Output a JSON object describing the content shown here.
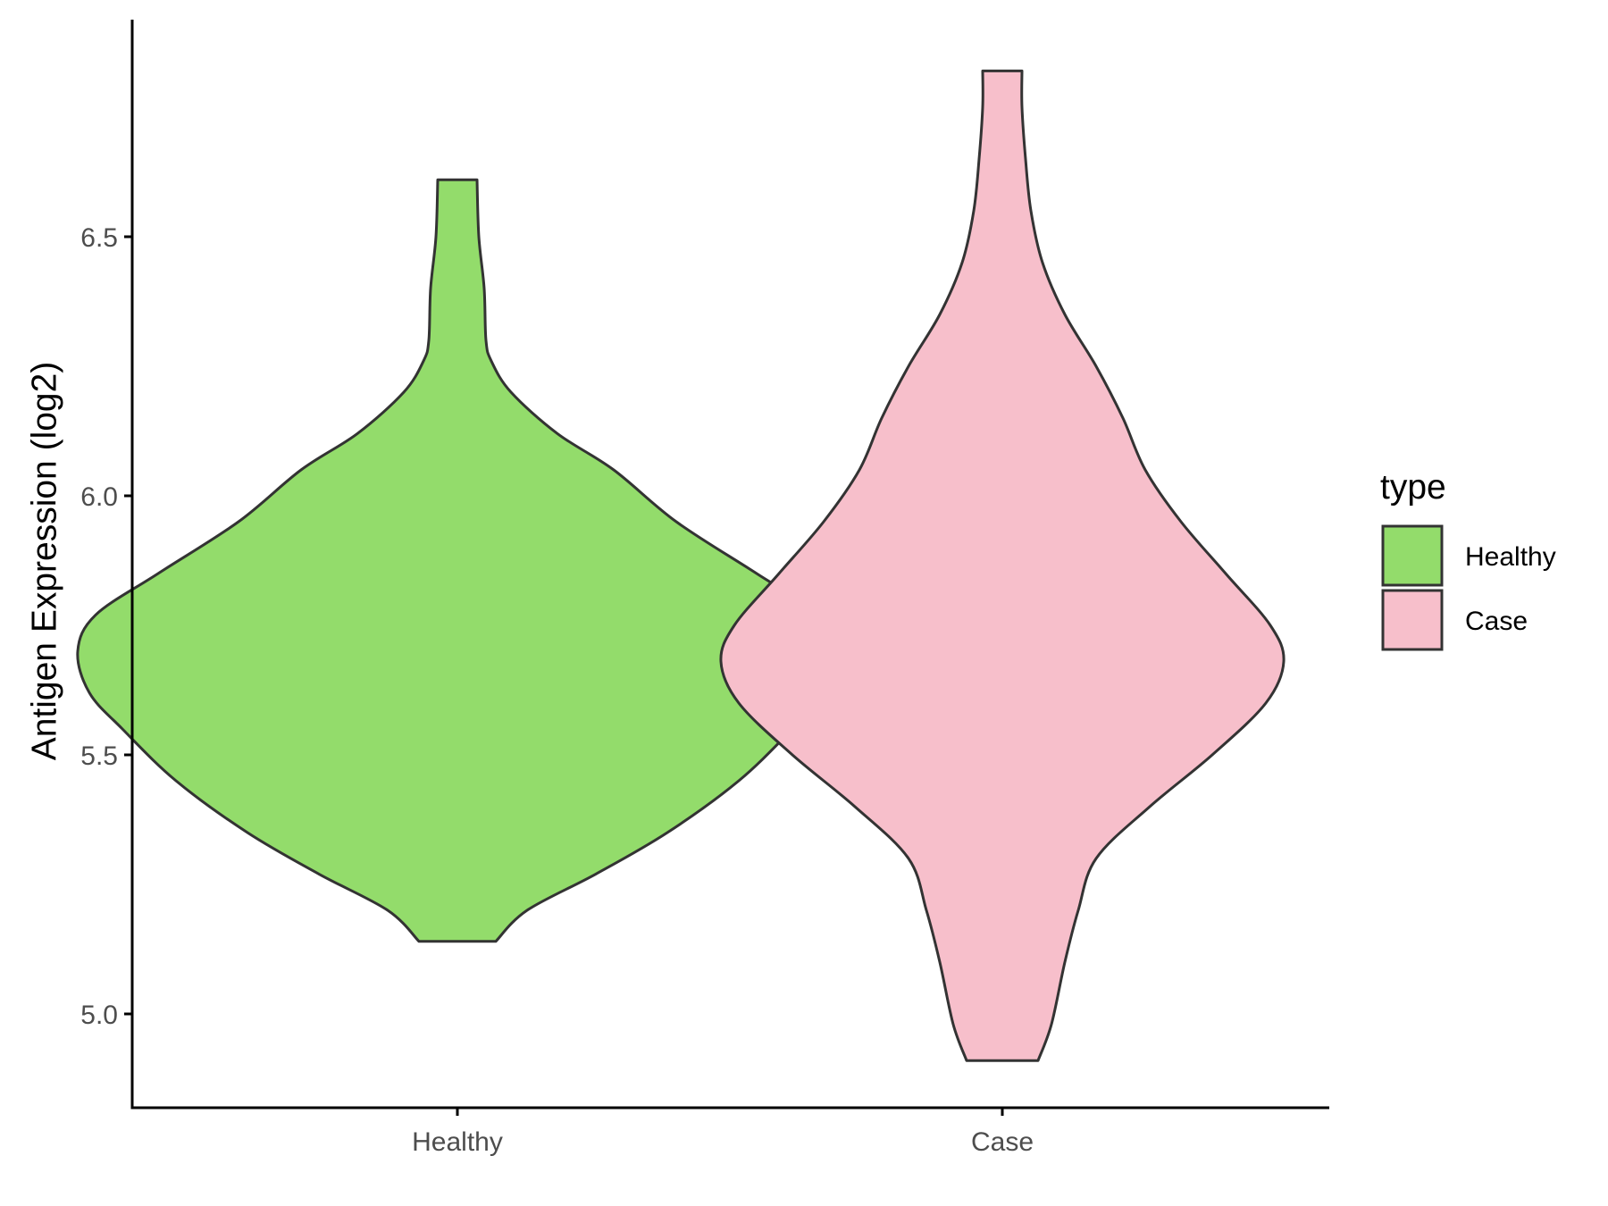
{
  "chart_data": {
    "type": "violin",
    "ylabel": "Antigen Expression (log2)",
    "xlabel": "",
    "categories": [
      "Healthy",
      "Case"
    ],
    "y_ticks": [
      "5.0",
      "5.5",
      "6.0",
      "6.5"
    ],
    "ylim": [
      4.82,
      6.92
    ],
    "grid": false,
    "legend": {
      "title": "type",
      "placement": "right",
      "entries": [
        "Healthy",
        "Case"
      ]
    },
    "series": [
      {
        "name": "Healthy",
        "color": "#93dc6b",
        "min": 5.14,
        "max": 6.61,
        "density_half_widths": [
          [
            5.14,
            0.043
          ],
          [
            5.2,
            0.078
          ],
          [
            5.27,
            0.155
          ],
          [
            5.35,
            0.235
          ],
          [
            5.45,
            0.315
          ],
          [
            5.55,
            0.375
          ],
          [
            5.62,
            0.412
          ],
          [
            5.7,
            0.425
          ],
          [
            5.77,
            0.405
          ],
          [
            5.85,
            0.335
          ],
          [
            5.95,
            0.245
          ],
          [
            6.05,
            0.175
          ],
          [
            6.12,
            0.112
          ],
          [
            6.2,
            0.06
          ],
          [
            6.26,
            0.038
          ],
          [
            6.3,
            0.032
          ],
          [
            6.4,
            0.03
          ],
          [
            6.5,
            0.024
          ],
          [
            6.61,
            0.022
          ]
        ]
      },
      {
        "name": "Case",
        "color": "#f7bfcb",
        "min": 4.91,
        "max": 6.82,
        "density_half_widths": [
          [
            4.91,
            0.04
          ],
          [
            4.98,
            0.055
          ],
          [
            5.1,
            0.07
          ],
          [
            5.2,
            0.085
          ],
          [
            5.3,
            0.105
          ],
          [
            5.4,
            0.165
          ],
          [
            5.5,
            0.235
          ],
          [
            5.6,
            0.295
          ],
          [
            5.68,
            0.315
          ],
          [
            5.75,
            0.3
          ],
          [
            5.85,
            0.25
          ],
          [
            5.95,
            0.2
          ],
          [
            6.05,
            0.16
          ],
          [
            6.15,
            0.135
          ],
          [
            6.25,
            0.105
          ],
          [
            6.35,
            0.07
          ],
          [
            6.45,
            0.045
          ],
          [
            6.55,
            0.032
          ],
          [
            6.65,
            0.026
          ],
          [
            6.75,
            0.022
          ],
          [
            6.82,
            0.022
          ]
        ]
      }
    ]
  }
}
